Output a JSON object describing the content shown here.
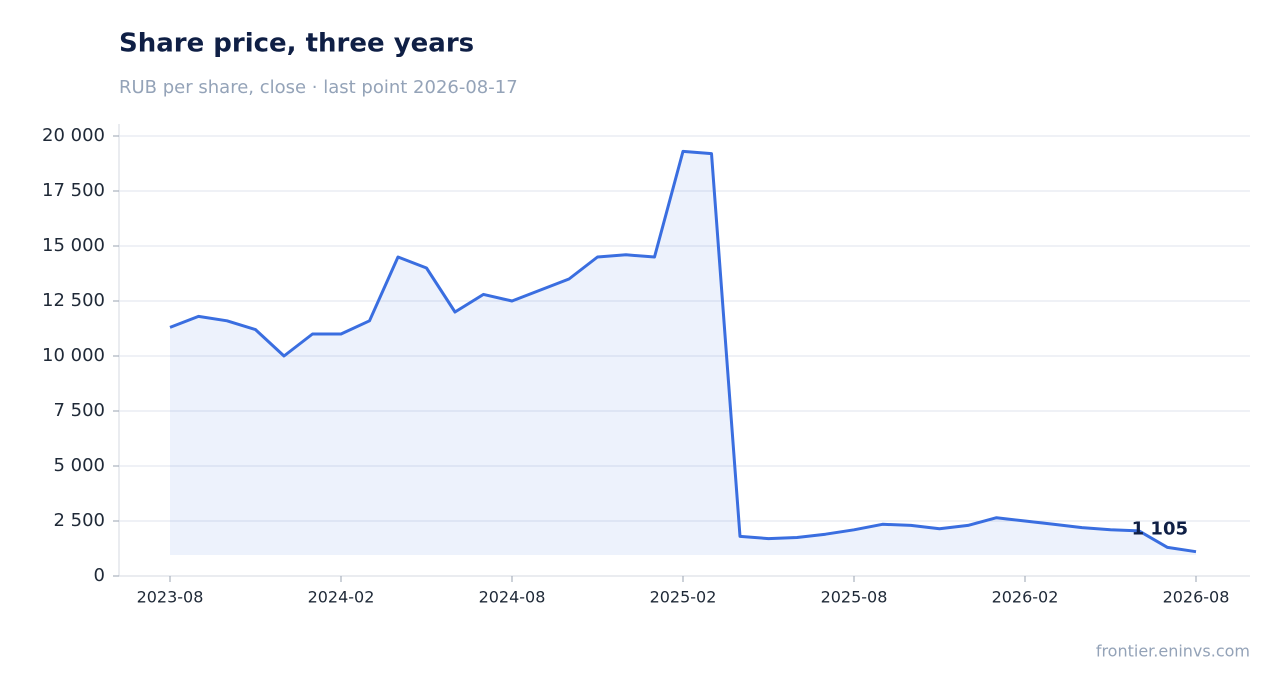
{
  "chart_data": {
    "type": "line",
    "title": "Share price, three years",
    "subtitle": "RUB per share, close · last point 2026-08-17",
    "source": "frontier.eninvs.com",
    "x": [
      "2023-08",
      "2023-09",
      "2023-10",
      "2023-11",
      "2023-12",
      "2024-01",
      "2024-02",
      "2024-03",
      "2024-04",
      "2024-05",
      "2024-06",
      "2024-07",
      "2024-08",
      "2024-09",
      "2024-10",
      "2024-11",
      "2024-12",
      "2025-01",
      "2025-02",
      "2025-03",
      "2025-04",
      "2025-05",
      "2025-06",
      "2025-07",
      "2025-08",
      "2025-09",
      "2025-10",
      "2025-11",
      "2025-12",
      "2026-01",
      "2026-02",
      "2026-03",
      "2026-04",
      "2026-05",
      "2026-06",
      "2026-07",
      "2026-08"
    ],
    "series": [
      {
        "color": "#3a6ee0",
        "values": [
          11300,
          11800,
          11600,
          11200,
          10000,
          11000,
          11000,
          11600,
          14500,
          14000,
          12000,
          12800,
          12500,
          13000,
          13500,
          14500,
          14600,
          14500,
          19300,
          19200,
          1800,
          1700,
          1750,
          1900,
          2100,
          2350,
          2300,
          2150,
          2300,
          2650,
          2500,
          2350,
          2200,
          2100,
          2050,
          1300,
          1105
        ]
      }
    ],
    "last_value_label": "1 105",
    "xticks": [
      "2023-08",
      "2024-02",
      "2024-08",
      "2025-02",
      "2025-08",
      "2026-02",
      "2026-08"
    ],
    "ylim": [
      0,
      20000
    ],
    "yticks": [
      0,
      {
        "value": 2500,
        "label": "2 500"
      },
      {
        "value": 5000,
        "label": "5 000"
      },
      {
        "value": 7500,
        "label": "7 500"
      },
      {
        "value": 10000,
        "label": "10 000"
      },
      {
        "value": 12500,
        "label": "12 500"
      },
      {
        "value": 15000,
        "label": "15 000"
      },
      {
        "value": 17500,
        "label": "17 500"
      },
      {
        "value": 20000,
        "label": "20 000"
      }
    ],
    "grid": true
  }
}
